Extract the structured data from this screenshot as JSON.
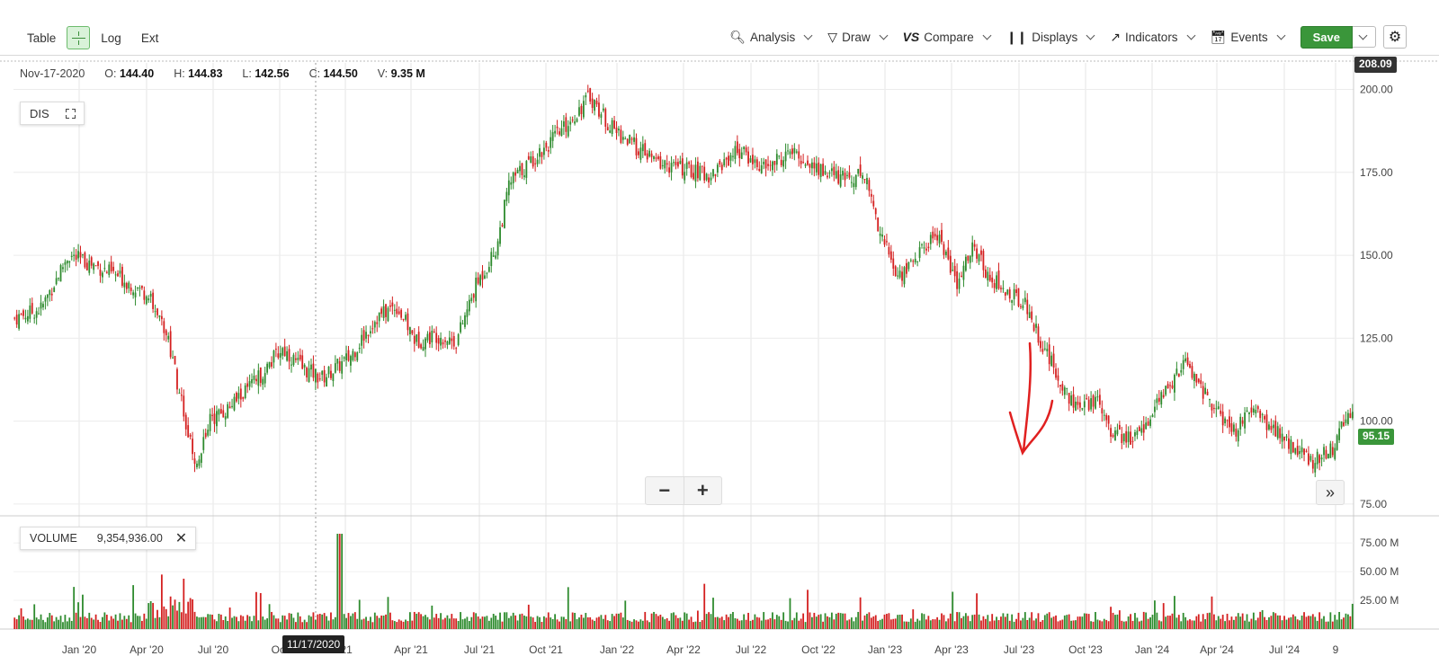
{
  "toolbar": {
    "left": {
      "table_label": "Table",
      "log_label": "Log",
      "ext_label": "Ext"
    },
    "menus": [
      {
        "label": "Analysis",
        "icon": "magnifier-chart-icon"
      },
      {
        "label": "Draw",
        "icon": "pen-nib-icon"
      },
      {
        "label": "Compare",
        "icon": "vs-icon"
      },
      {
        "label": "Displays",
        "icon": "candlestick-icon"
      },
      {
        "label": "Indicators",
        "icon": "line-chart-icon"
      },
      {
        "label": "Events",
        "icon": "calendar-icon"
      }
    ],
    "save_label": "Save"
  },
  "ohlc": {
    "date": "Nov-17-2020",
    "open_label": "O:",
    "open": "144.40",
    "high_label": "H:",
    "high": "144.83",
    "low_label": "L:",
    "low": "142.56",
    "close_label": "C:",
    "close": "144.50",
    "volume_label": "V:",
    "volume": "9.35 M"
  },
  "symbol": "DIS",
  "volume_panel": {
    "label": "VOLUME",
    "value": "9,354,936.00"
  },
  "price_badges": {
    "top": "208.09",
    "last": "95.15"
  },
  "cursor_date": "11/17/2020",
  "colors": {
    "up": "#2e8b2e",
    "down": "#d42020",
    "accent": "#3a963a",
    "annotation": "#e02020"
  },
  "chart_data": {
    "type": "candlestick",
    "price_axis": {
      "ticks": [
        "200.00",
        "175.00",
        "150.00",
        "125.00",
        "100.00",
        "75.00"
      ],
      "range": [
        72,
        208
      ]
    },
    "volume_axis": {
      "ticks": [
        "75.00 M",
        "50.00 M",
        "25.00 M"
      ],
      "range": [
        0,
        90
      ]
    },
    "x_ticks": [
      "Jan '20",
      "Apr '20",
      "Jul '20",
      "Oct",
      "'21",
      "Apr '21",
      "Jul '21",
      "Oct '21",
      "Jan '22",
      "Apr '22",
      "Jul '22",
      "Oct '22",
      "Jan '23",
      "Apr '23",
      "Jul '23",
      "Oct '23",
      "Jan '24",
      "Apr '24",
      "Jul '24",
      "9"
    ],
    "grid": true,
    "series": {
      "name": "DIS",
      "close_path_points": [
        [
          0.0,
          131
        ],
        [
          0.02,
          134
        ],
        [
          0.04,
          150
        ],
        [
          0.06,
          147
        ],
        [
          0.08,
          143
        ],
        [
          0.1,
          138
        ],
        [
          0.115,
          125
        ],
        [
          0.125,
          105
        ],
        [
          0.135,
          86
        ],
        [
          0.145,
          100
        ],
        [
          0.16,
          104
        ],
        [
          0.18,
          112
        ],
        [
          0.2,
          122
        ],
        [
          0.215,
          116
        ],
        [
          0.23,
          113
        ],
        [
          0.25,
          119
        ],
        [
          0.27,
          131
        ],
        [
          0.285,
          135
        ],
        [
          0.3,
          124
        ],
        [
          0.315,
          126
        ],
        [
          0.33,
          124
        ],
        [
          0.345,
          141
        ],
        [
          0.36,
          152
        ],
        [
          0.37,
          172
        ],
        [
          0.39,
          180
        ],
        [
          0.41,
          188
        ],
        [
          0.43,
          198
        ],
        [
          0.445,
          189
        ],
        [
          0.46,
          184
        ],
        [
          0.48,
          178
        ],
        [
          0.5,
          176
        ],
        [
          0.52,
          174
        ],
        [
          0.54,
          182
        ],
        [
          0.56,
          176
        ],
        [
          0.58,
          181
        ],
        [
          0.6,
          176
        ],
        [
          0.62,
          173
        ],
        [
          0.635,
          175
        ],
        [
          0.645,
          160
        ],
        [
          0.66,
          143
        ],
        [
          0.675,
          150
        ],
        [
          0.69,
          157
        ],
        [
          0.705,
          140
        ],
        [
          0.715,
          153
        ],
        [
          0.725,
          146
        ],
        [
          0.74,
          139
        ],
        [
          0.755,
          136
        ],
        [
          0.765,
          126
        ],
        [
          0.78,
          113
        ],
        [
          0.795,
          103
        ],
        [
          0.81,
          107
        ],
        [
          0.82,
          97
        ],
        [
          0.835,
          94
        ],
        [
          0.85,
          102
        ],
        [
          0.865,
          112
        ],
        [
          0.875,
          118
        ],
        [
          0.89,
          108
        ],
        [
          0.9,
          102
        ],
        [
          0.91,
          96
        ],
        [
          0.925,
          103
        ],
        [
          0.94,
          98
        ],
        [
          0.955,
          92
        ],
        [
          0.97,
          88
        ],
        [
          0.985,
          92
        ],
        [
          1.0,
          104
        ]
      ]
    }
  }
}
